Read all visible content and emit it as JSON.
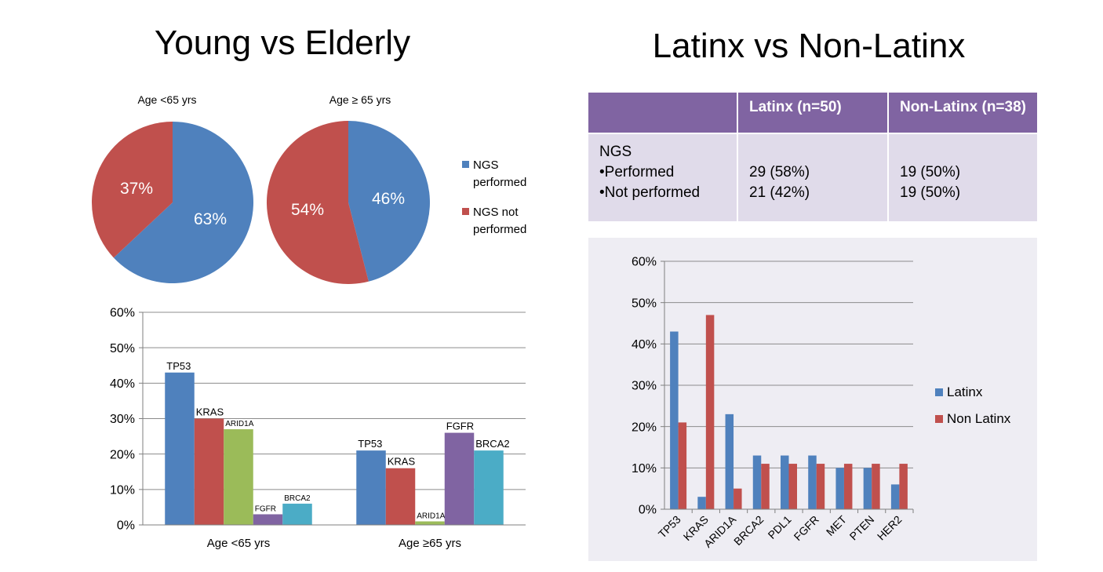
{
  "left_title": "Young vs Elderly",
  "right_title": "Latinx vs Non-Latinx",
  "colors": {
    "blue": "#4f81bd",
    "red": "#c0504d",
    "green": "#9bbb59",
    "purple": "#8064a2",
    "teal": "#4bacc6",
    "table_header": "#8064a2",
    "table_body": "#e0dbea"
  },
  "pie_legend": [
    {
      "label": "NGS performed",
      "color": "#4f81bd"
    },
    {
      "label": "NGS not performed",
      "color": "#c0504d"
    }
  ],
  "table": {
    "headers": [
      "",
      "Latinx (n=50)",
      "Non-Latinx (n=38)"
    ],
    "row_label": [
      "NGS",
      "•Performed",
      "•Not performed"
    ],
    "latinx": [
      "",
      "29 (58%)",
      "21 (42%)"
    ],
    "non_latinx": [
      "",
      "19 (50%)",
      "19 (50%)"
    ]
  },
  "chart_data": [
    {
      "type": "pie",
      "title": "Age <65 yrs",
      "labels": [
        "NGS performed",
        "NGS not performed"
      ],
      "values": [
        63,
        37
      ],
      "value_labels": [
        "63%",
        "37%"
      ],
      "colors": [
        "#4f81bd",
        "#c0504d"
      ]
    },
    {
      "type": "pie",
      "title": "Age ≥ 65 yrs",
      "labels": [
        "NGS performed",
        "NGS not performed"
      ],
      "values": [
        46,
        54
      ],
      "value_labels": [
        "46%",
        "54%"
      ],
      "colors": [
        "#4f81bd",
        "#c0504d"
      ]
    },
    {
      "type": "bar",
      "categories": [
        "Age <65 yrs",
        "Age ≥65 yrs"
      ],
      "groups": [
        {
          "category": "Age <65 yrs",
          "bars": [
            {
              "gene": "TP53",
              "value": 43,
              "color": "#4f81bd"
            },
            {
              "gene": "KRAS",
              "value": 30,
              "color": "#c0504d"
            },
            {
              "gene": "ARID1A",
              "value": 27,
              "color": "#9bbb59"
            },
            {
              "gene": "FGFR",
              "value": 3,
              "color": "#8064a2"
            },
            {
              "gene": "BRCA2",
              "value": 6,
              "color": "#4bacc6"
            }
          ]
        },
        {
          "category": "Age ≥65 yrs",
          "bars": [
            {
              "gene": "TP53",
              "value": 21,
              "color": "#4f81bd"
            },
            {
              "gene": "KRAS",
              "value": 16,
              "color": "#c0504d"
            },
            {
              "gene": "ARID1A",
              "value": 1,
              "color": "#9bbb59"
            },
            {
              "gene": "FGFR",
              "value": 26,
              "color": "#8064a2"
            },
            {
              "gene": "BRCA2",
              "value": 21,
              "color": "#4bacc6"
            }
          ]
        }
      ],
      "ylim": [
        0,
        60
      ],
      "yticks": [
        0,
        10,
        20,
        30,
        40,
        50,
        60
      ],
      "yticklabels": [
        "0%",
        "10%",
        "20%",
        "30%",
        "40%",
        "50%",
        "60%"
      ],
      "grid": true
    },
    {
      "type": "bar",
      "categories": [
        "TP53",
        "KRAS",
        "ARID1A",
        "BRCA2",
        "PDL1",
        "FGFR",
        "MET",
        "PTEN",
        "HER2"
      ],
      "series": [
        {
          "name": "Latinx",
          "color": "#4f81bd",
          "values": [
            43,
            3,
            23,
            13,
            13,
            13,
            10,
            10,
            6
          ]
        },
        {
          "name": "Non Latinx",
          "color": "#c0504d",
          "values": [
            21,
            47,
            5,
            11,
            11,
            11,
            11,
            11,
            11
          ]
        }
      ],
      "ylim": [
        0,
        60
      ],
      "yticks": [
        0,
        10,
        20,
        30,
        40,
        50,
        60
      ],
      "yticklabels": [
        "0%",
        "10%",
        "20%",
        "30%",
        "40%",
        "50%",
        "60%"
      ],
      "grid": true,
      "legend": "right"
    }
  ]
}
